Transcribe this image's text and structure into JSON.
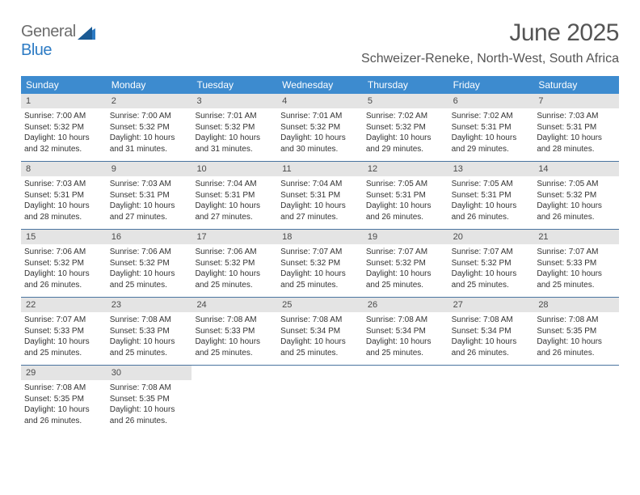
{
  "brand": {
    "part1": "General",
    "part2": "Blue"
  },
  "title": "June 2025",
  "location": "Schweizer-Reneke, North-West, South Africa",
  "colors": {
    "header_bg": "#3d8bcf",
    "header_text": "#ffffff",
    "daynum_bg": "#e4e4e4",
    "week_border": "#4a74a0",
    "brand_gray": "#6c6c6c",
    "brand_blue": "#2d7bc4"
  },
  "day_names": [
    "Sunday",
    "Monday",
    "Tuesday",
    "Wednesday",
    "Thursday",
    "Friday",
    "Saturday"
  ],
  "days": [
    {
      "n": "1",
      "sr": "7:00 AM",
      "ss": "5:32 PM",
      "dl": "10 hours and 32 minutes."
    },
    {
      "n": "2",
      "sr": "7:00 AM",
      "ss": "5:32 PM",
      "dl": "10 hours and 31 minutes."
    },
    {
      "n": "3",
      "sr": "7:01 AM",
      "ss": "5:32 PM",
      "dl": "10 hours and 31 minutes."
    },
    {
      "n": "4",
      "sr": "7:01 AM",
      "ss": "5:32 PM",
      "dl": "10 hours and 30 minutes."
    },
    {
      "n": "5",
      "sr": "7:02 AM",
      "ss": "5:32 PM",
      "dl": "10 hours and 29 minutes."
    },
    {
      "n": "6",
      "sr": "7:02 AM",
      "ss": "5:31 PM",
      "dl": "10 hours and 29 minutes."
    },
    {
      "n": "7",
      "sr": "7:03 AM",
      "ss": "5:31 PM",
      "dl": "10 hours and 28 minutes."
    },
    {
      "n": "8",
      "sr": "7:03 AM",
      "ss": "5:31 PM",
      "dl": "10 hours and 28 minutes."
    },
    {
      "n": "9",
      "sr": "7:03 AM",
      "ss": "5:31 PM",
      "dl": "10 hours and 27 minutes."
    },
    {
      "n": "10",
      "sr": "7:04 AM",
      "ss": "5:31 PM",
      "dl": "10 hours and 27 minutes."
    },
    {
      "n": "11",
      "sr": "7:04 AM",
      "ss": "5:31 PM",
      "dl": "10 hours and 27 minutes."
    },
    {
      "n": "12",
      "sr": "7:05 AM",
      "ss": "5:31 PM",
      "dl": "10 hours and 26 minutes."
    },
    {
      "n": "13",
      "sr": "7:05 AM",
      "ss": "5:31 PM",
      "dl": "10 hours and 26 minutes."
    },
    {
      "n": "14",
      "sr": "7:05 AM",
      "ss": "5:32 PM",
      "dl": "10 hours and 26 minutes."
    },
    {
      "n": "15",
      "sr": "7:06 AM",
      "ss": "5:32 PM",
      "dl": "10 hours and 26 minutes."
    },
    {
      "n": "16",
      "sr": "7:06 AM",
      "ss": "5:32 PM",
      "dl": "10 hours and 25 minutes."
    },
    {
      "n": "17",
      "sr": "7:06 AM",
      "ss": "5:32 PM",
      "dl": "10 hours and 25 minutes."
    },
    {
      "n": "18",
      "sr": "7:07 AM",
      "ss": "5:32 PM",
      "dl": "10 hours and 25 minutes."
    },
    {
      "n": "19",
      "sr": "7:07 AM",
      "ss": "5:32 PM",
      "dl": "10 hours and 25 minutes."
    },
    {
      "n": "20",
      "sr": "7:07 AM",
      "ss": "5:32 PM",
      "dl": "10 hours and 25 minutes."
    },
    {
      "n": "21",
      "sr": "7:07 AM",
      "ss": "5:33 PM",
      "dl": "10 hours and 25 minutes."
    },
    {
      "n": "22",
      "sr": "7:07 AM",
      "ss": "5:33 PM",
      "dl": "10 hours and 25 minutes."
    },
    {
      "n": "23",
      "sr": "7:08 AM",
      "ss": "5:33 PM",
      "dl": "10 hours and 25 minutes."
    },
    {
      "n": "24",
      "sr": "7:08 AM",
      "ss": "5:33 PM",
      "dl": "10 hours and 25 minutes."
    },
    {
      "n": "25",
      "sr": "7:08 AM",
      "ss": "5:34 PM",
      "dl": "10 hours and 25 minutes."
    },
    {
      "n": "26",
      "sr": "7:08 AM",
      "ss": "5:34 PM",
      "dl": "10 hours and 25 minutes."
    },
    {
      "n": "27",
      "sr": "7:08 AM",
      "ss": "5:34 PM",
      "dl": "10 hours and 26 minutes."
    },
    {
      "n": "28",
      "sr": "7:08 AM",
      "ss": "5:35 PM",
      "dl": "10 hours and 26 minutes."
    },
    {
      "n": "29",
      "sr": "7:08 AM",
      "ss": "5:35 PM",
      "dl": "10 hours and 26 minutes."
    },
    {
      "n": "30",
      "sr": "7:08 AM",
      "ss": "5:35 PM",
      "dl": "10 hours and 26 minutes."
    }
  ],
  "labels": {
    "sunrise": "Sunrise:",
    "sunset": "Sunset:",
    "daylight": "Daylight:"
  }
}
